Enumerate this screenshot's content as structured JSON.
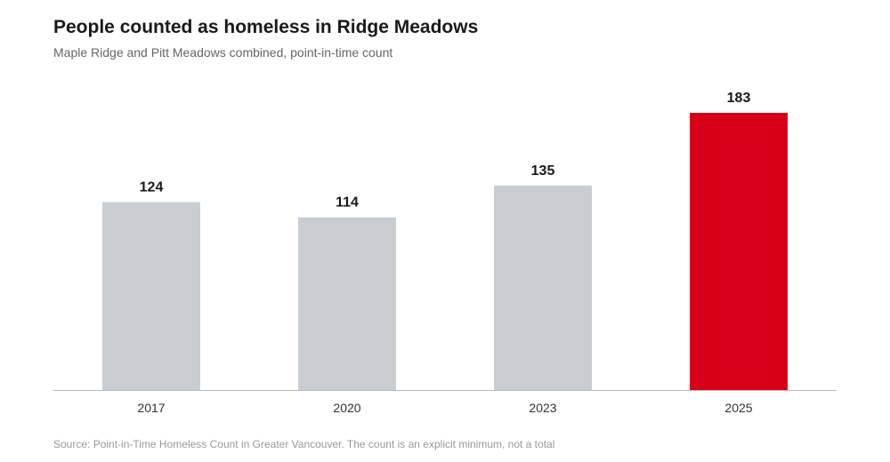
{
  "header": {
    "title": "People counted as homeless in Ridge Meadows",
    "subtitle": "Maple Ridge and Pitt Meadows combined, point-in-time count"
  },
  "footer": {
    "source": "Source: Point-in-Time Homeless Count in Greater Vancouver. The count is an explicit minimum, not a total"
  },
  "chart_data": {
    "type": "bar",
    "categories": [
      "2017",
      "2020",
      "2023",
      "2025"
    ],
    "values": [
      124,
      114,
      135,
      183
    ],
    "data_labels": [
      "124",
      "114",
      "135",
      "183"
    ],
    "ylim": [
      0,
      183
    ],
    "grid": false,
    "legend": "none",
    "colors": {
      "default": "#c9cdd2",
      "highlight": "#d50018",
      "axis": "#bbbbbb"
    },
    "highlight_index": 3
  }
}
